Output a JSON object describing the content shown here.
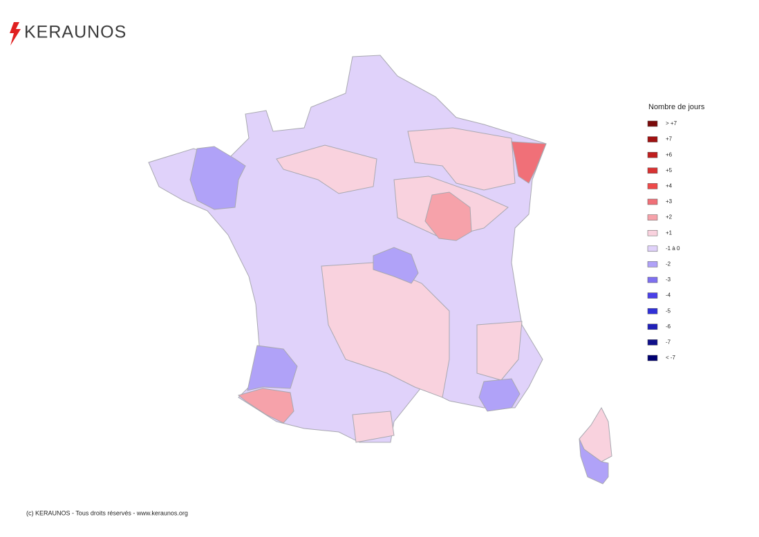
{
  "logo": "KERAUNOS",
  "legend": {
    "title": "Nombre de jours",
    "items": [
      {
        "label": "> +7",
        "color": "#7a0a0a"
      },
      {
        "label": "+7",
        "color": "#a01212"
      },
      {
        "label": "+6",
        "color": "#c01e1e"
      },
      {
        "label": "+5",
        "color": "#d83232"
      },
      {
        "label": "+4",
        "color": "#ee4a4a"
      },
      {
        "label": "+3",
        "color": "#f07078"
      },
      {
        "label": "+2",
        "color": "#f6a2aa"
      },
      {
        "label": "+1",
        "color": "#f9d2de"
      },
      {
        "label": "-1 à 0",
        "color": "#e0d2fa"
      },
      {
        "label": "-2",
        "color": "#b0a2f8"
      },
      {
        "label": "-3",
        "color": "#7e70f0"
      },
      {
        "label": "-4",
        "color": "#4a40e8"
      },
      {
        "label": "-5",
        "color": "#3030d8"
      },
      {
        "label": "-6",
        "color": "#2020b8"
      },
      {
        "label": "-7",
        "color": "#10108a"
      },
      {
        "label": "< -7",
        "color": "#000070"
      }
    ]
  },
  "footer": "(c) KERAUNOS - Tous droits réservés - www.keraunos.org"
}
